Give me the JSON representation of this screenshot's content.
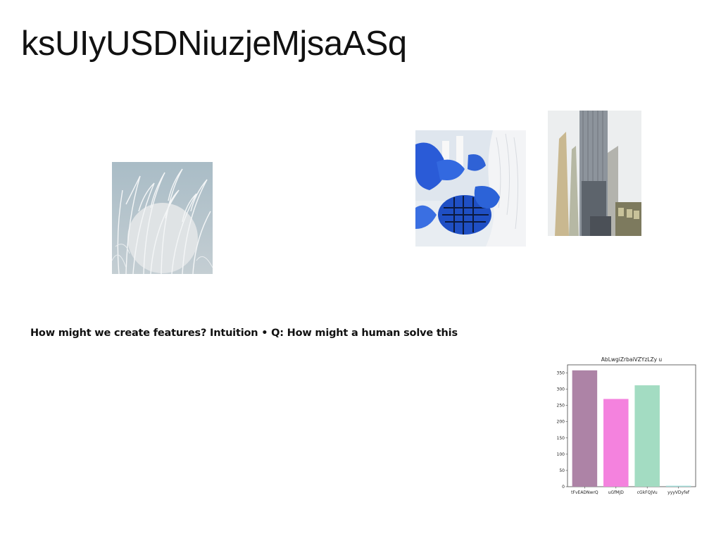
{
  "slide": {
    "title": "ksUIyUSDNiuzjeMjsaASq",
    "caption": "How might we create features? Intuition • Q: How might a human solve this"
  },
  "images": [
    {
      "subject": "white grass stalks against pale sky"
    },
    {
      "subject": "blue-gloved hands holding a blue lattice pie"
    },
    {
      "subject": "tall skyscrapers"
    }
  ],
  "chart_data": {
    "type": "bar",
    "title": "AbLwgiZrbaiVZYzLZy u",
    "categories": [
      "tFvEADNwrQ",
      "uGfMJD",
      "cGkFQJVu",
      "yyyVDyfef"
    ],
    "values": [
      358,
      270,
      312,
      3
    ],
    "colors": [
      "#ad83a6",
      "#f482de",
      "#a3dcc2",
      "#a3e0dc"
    ],
    "ylim": [
      0,
      375
    ],
    "yticks": [
      0,
      50,
      100,
      150,
      200,
      250,
      300,
      350
    ],
    "xlabel": "",
    "ylabel": "",
    "grid": false
  }
}
